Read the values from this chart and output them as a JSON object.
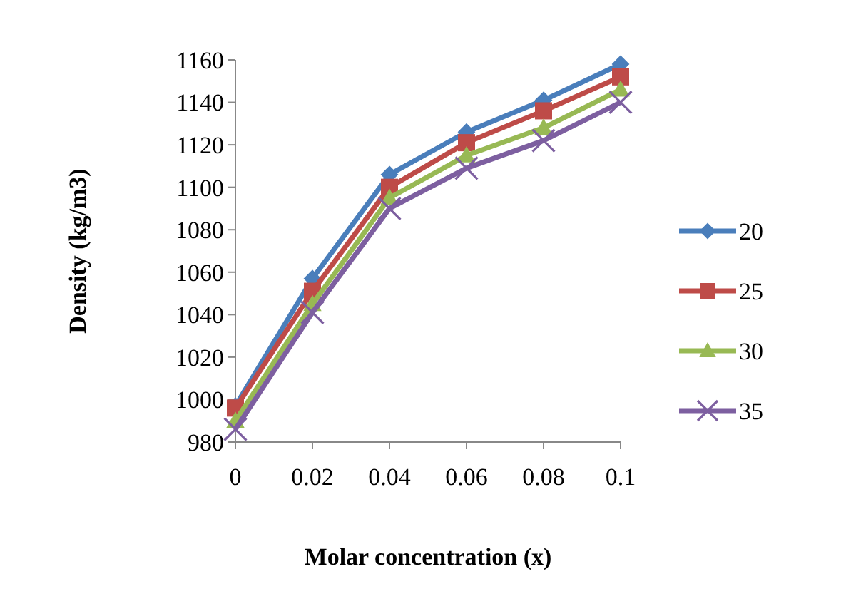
{
  "chart_data": {
    "type": "line",
    "xlabel": "Molar concentration (x)",
    "ylabel": "Density (kg/m3)",
    "categories": [
      "0",
      "0.02",
      "0.04",
      "0.06",
      "0.08",
      "0.1"
    ],
    "ylim": [
      980,
      1160
    ],
    "yticks": [
      980,
      1000,
      1020,
      1040,
      1060,
      1080,
      1100,
      1120,
      1140,
      1160
    ],
    "grid": false,
    "legend": "right",
    "line_style": "solid",
    "series": [
      {
        "name": "20",
        "color": "#4a7ebb",
        "marker": "diamond",
        "values": [
          997,
          1057,
          1106,
          1126,
          1141,
          1158
        ]
      },
      {
        "name": "25",
        "color": "#be4b48",
        "marker": "square",
        "values": [
          996,
          1051,
          1100,
          1121,
          1136,
          1152
        ]
      },
      {
        "name": "30",
        "color": "#98b954",
        "marker": "triangle",
        "values": [
          990,
          1045,
          1095,
          1115,
          1128,
          1146
        ]
      },
      {
        "name": "35",
        "color": "#7d5fa0",
        "marker": "cross",
        "values": [
          986,
          1041,
          1090,
          1109,
          1122,
          1140
        ]
      }
    ]
  }
}
